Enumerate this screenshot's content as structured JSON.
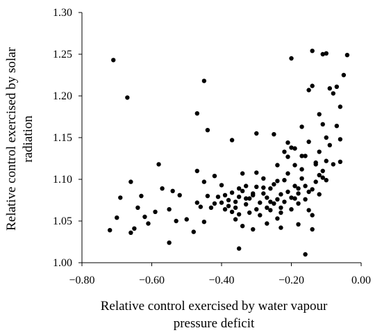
{
  "chart_data": {
    "type": "scatter",
    "xlabel_lines": [
      "Relative  control exercised by water vapour",
      "pressure deficit"
    ],
    "ylabel_lines": [
      "Relative  control exercised by solar",
      "radiation"
    ],
    "xlim": [
      -0.8,
      0.0
    ],
    "ylim": [
      1.0,
      1.3
    ],
    "x_ticks": [
      -0.8,
      -0.6,
      -0.4,
      -0.2,
      0.0
    ],
    "x_tick_labels": [
      "−0.80",
      "−0.60",
      "−0.40",
      "−0.20",
      "0.00"
    ],
    "y_ticks": [
      1.0,
      1.05,
      1.1,
      1.15,
      1.2,
      1.25,
      1.3
    ],
    "y_tick_labels": [
      "1.00",
      "1.05",
      "1.10",
      "1.15",
      "1.20",
      "1.25",
      "1.30"
    ],
    "grid": false,
    "legend": "none",
    "marker_color": "#000000",
    "series": [
      {
        "points": [
          [
            -0.71,
            1.243
          ],
          [
            -0.67,
            1.198
          ],
          [
            -0.45,
            1.218
          ],
          [
            -0.44,
            1.159
          ],
          [
            -0.47,
            1.179
          ],
          [
            -0.72,
            1.039
          ],
          [
            -0.7,
            1.054
          ],
          [
            -0.69,
            1.078
          ],
          [
            -0.66,
            1.097
          ],
          [
            -0.66,
            1.036
          ],
          [
            -0.65,
            1.041
          ],
          [
            -0.64,
            1.066
          ],
          [
            -0.63,
            1.08
          ],
          [
            -0.62,
            1.055
          ],
          [
            -0.61,
            1.047
          ],
          [
            -0.59,
            1.061
          ],
          [
            -0.58,
            1.118
          ],
          [
            -0.57,
            1.089
          ],
          [
            -0.55,
            1.064
          ],
          [
            -0.55,
            1.024
          ],
          [
            -0.54,
            1.086
          ],
          [
            -0.53,
            1.05
          ],
          [
            -0.52,
            1.081
          ],
          [
            -0.5,
            1.052
          ],
          [
            -0.48,
            1.037
          ],
          [
            -0.47,
            1.072
          ],
          [
            -0.47,
            1.11
          ],
          [
            -0.46,
            1.067
          ],
          [
            -0.45,
            1.097
          ],
          [
            -0.45,
            1.049
          ],
          [
            -0.44,
            1.08
          ],
          [
            -0.43,
            1.066
          ],
          [
            -0.42,
            1.071
          ],
          [
            -0.42,
            1.104
          ],
          [
            -0.41,
            1.079
          ],
          [
            -0.4,
            1.093
          ],
          [
            -0.4,
            1.072
          ],
          [
            -0.39,
            1.081
          ],
          [
            -0.39,
            1.064
          ],
          [
            -0.38,
            1.075
          ],
          [
            -0.37,
            1.061
          ],
          [
            -0.37,
            1.084
          ],
          [
            -0.37,
            1.147
          ],
          [
            -0.36,
            1.052
          ],
          [
            -0.36,
            1.066
          ],
          [
            -0.36,
            1.073
          ],
          [
            -0.35,
            1.058
          ],
          [
            -0.35,
            1.017
          ],
          [
            -0.35,
            1.079
          ],
          [
            -0.34,
            1.086
          ],
          [
            -0.34,
            1.107
          ],
          [
            -0.34,
            1.044
          ],
          [
            -0.33,
            1.07
          ],
          [
            -0.33,
            1.092
          ],
          [
            -0.32,
            1.06
          ],
          [
            -0.32,
            1.077
          ],
          [
            -0.31,
            1.081
          ],
          [
            -0.31,
            1.04
          ],
          [
            -0.3,
            1.064
          ],
          [
            -0.3,
            1.091
          ],
          [
            -0.3,
            1.155
          ],
          [
            -0.29,
            1.072
          ],
          [
            -0.29,
            1.057
          ],
          [
            -0.28,
            1.083
          ],
          [
            -0.28,
            1.101
          ],
          [
            -0.27,
            1.066
          ],
          [
            -0.27,
            1.078
          ],
          [
            -0.27,
            1.047
          ],
          [
            -0.26,
            1.089
          ],
          [
            -0.26,
            1.063
          ],
          [
            -0.25,
            1.071
          ],
          [
            -0.25,
            1.094
          ],
          [
            -0.25,
            1.154
          ],
          [
            -0.24,
            1.076
          ],
          [
            -0.24,
            1.053
          ],
          [
            -0.24,
            1.117
          ],
          [
            -0.23,
            1.082
          ],
          [
            -0.23,
            1.06
          ],
          [
            -0.23,
            1.042
          ],
          [
            -0.22,
            1.099
          ],
          [
            -0.22,
            1.073
          ],
          [
            -0.22,
            1.133
          ],
          [
            -0.21,
            1.085
          ],
          [
            -0.21,
            1.107
          ],
          [
            -0.21,
            1.144
          ],
          [
            -0.2,
            1.245
          ],
          [
            -0.2,
            1.078
          ],
          [
            -0.2,
            1.064
          ],
          [
            -0.19,
            1.092
          ],
          [
            -0.19,
            1.117
          ],
          [
            -0.19,
            1.137
          ],
          [
            -0.18,
            1.071
          ],
          [
            -0.18,
            1.083
          ],
          [
            -0.18,
            1.046
          ],
          [
            -0.17,
            1.101
          ],
          [
            -0.17,
            1.128
          ],
          [
            -0.17,
            1.163
          ],
          [
            -0.16,
            1.076
          ],
          [
            -0.16,
            1.092
          ],
          [
            -0.16,
            1.01
          ],
          [
            -0.15,
            1.207
          ],
          [
            -0.15,
            1.145
          ],
          [
            -0.15,
            1.063
          ],
          [
            -0.14,
            1.254
          ],
          [
            -0.14,
            1.212
          ],
          [
            -0.14,
            1.088
          ],
          [
            -0.14,
            1.057
          ],
          [
            -0.14,
            1.04
          ],
          [
            -0.13,
            1.097
          ],
          [
            -0.13,
            1.118
          ],
          [
            -0.12,
            1.178
          ],
          [
            -0.12,
            1.133
          ],
          [
            -0.12,
            1.105
          ],
          [
            -0.11,
            1.25
          ],
          [
            -0.11,
            1.166
          ],
          [
            -0.11,
            1.11
          ],
          [
            -0.1,
            1.251
          ],
          [
            -0.1,
            1.15
          ],
          [
            -0.1,
            1.122
          ],
          [
            -0.1,
            1.099
          ],
          [
            -0.09,
            1.209
          ],
          [
            -0.09,
            1.141
          ],
          [
            -0.08,
            1.203
          ],
          [
            -0.08,
            1.118
          ],
          [
            -0.07,
            1.211
          ],
          [
            -0.07,
            1.164
          ],
          [
            -0.06,
            1.187
          ],
          [
            -0.06,
            1.148
          ],
          [
            -0.06,
            1.121
          ],
          [
            -0.05,
            1.225
          ],
          [
            -0.04,
            1.249
          ],
          [
            -0.21,
            1.127
          ],
          [
            -0.3,
            1.108
          ],
          [
            -0.26,
            1.073
          ],
          [
            -0.18,
            1.089
          ],
          [
            -0.12,
            1.082
          ],
          [
            -0.11,
            1.102
          ],
          [
            -0.2,
            1.138
          ],
          [
            -0.16,
            1.128
          ],
          [
            -0.28,
            1.09
          ],
          [
            -0.33,
            1.077
          ],
          [
            -0.38,
            1.068
          ],
          [
            -0.24,
            1.098
          ],
          [
            -0.15,
            1.085
          ],
          [
            -0.23,
            1.066
          ],
          [
            -0.19,
            1.077
          ],
          [
            -0.13,
            1.12
          ],
          [
            -0.17,
            1.112
          ],
          [
            -0.31,
            1.083
          ],
          [
            -0.35,
            1.089
          ]
        ]
      }
    ]
  }
}
